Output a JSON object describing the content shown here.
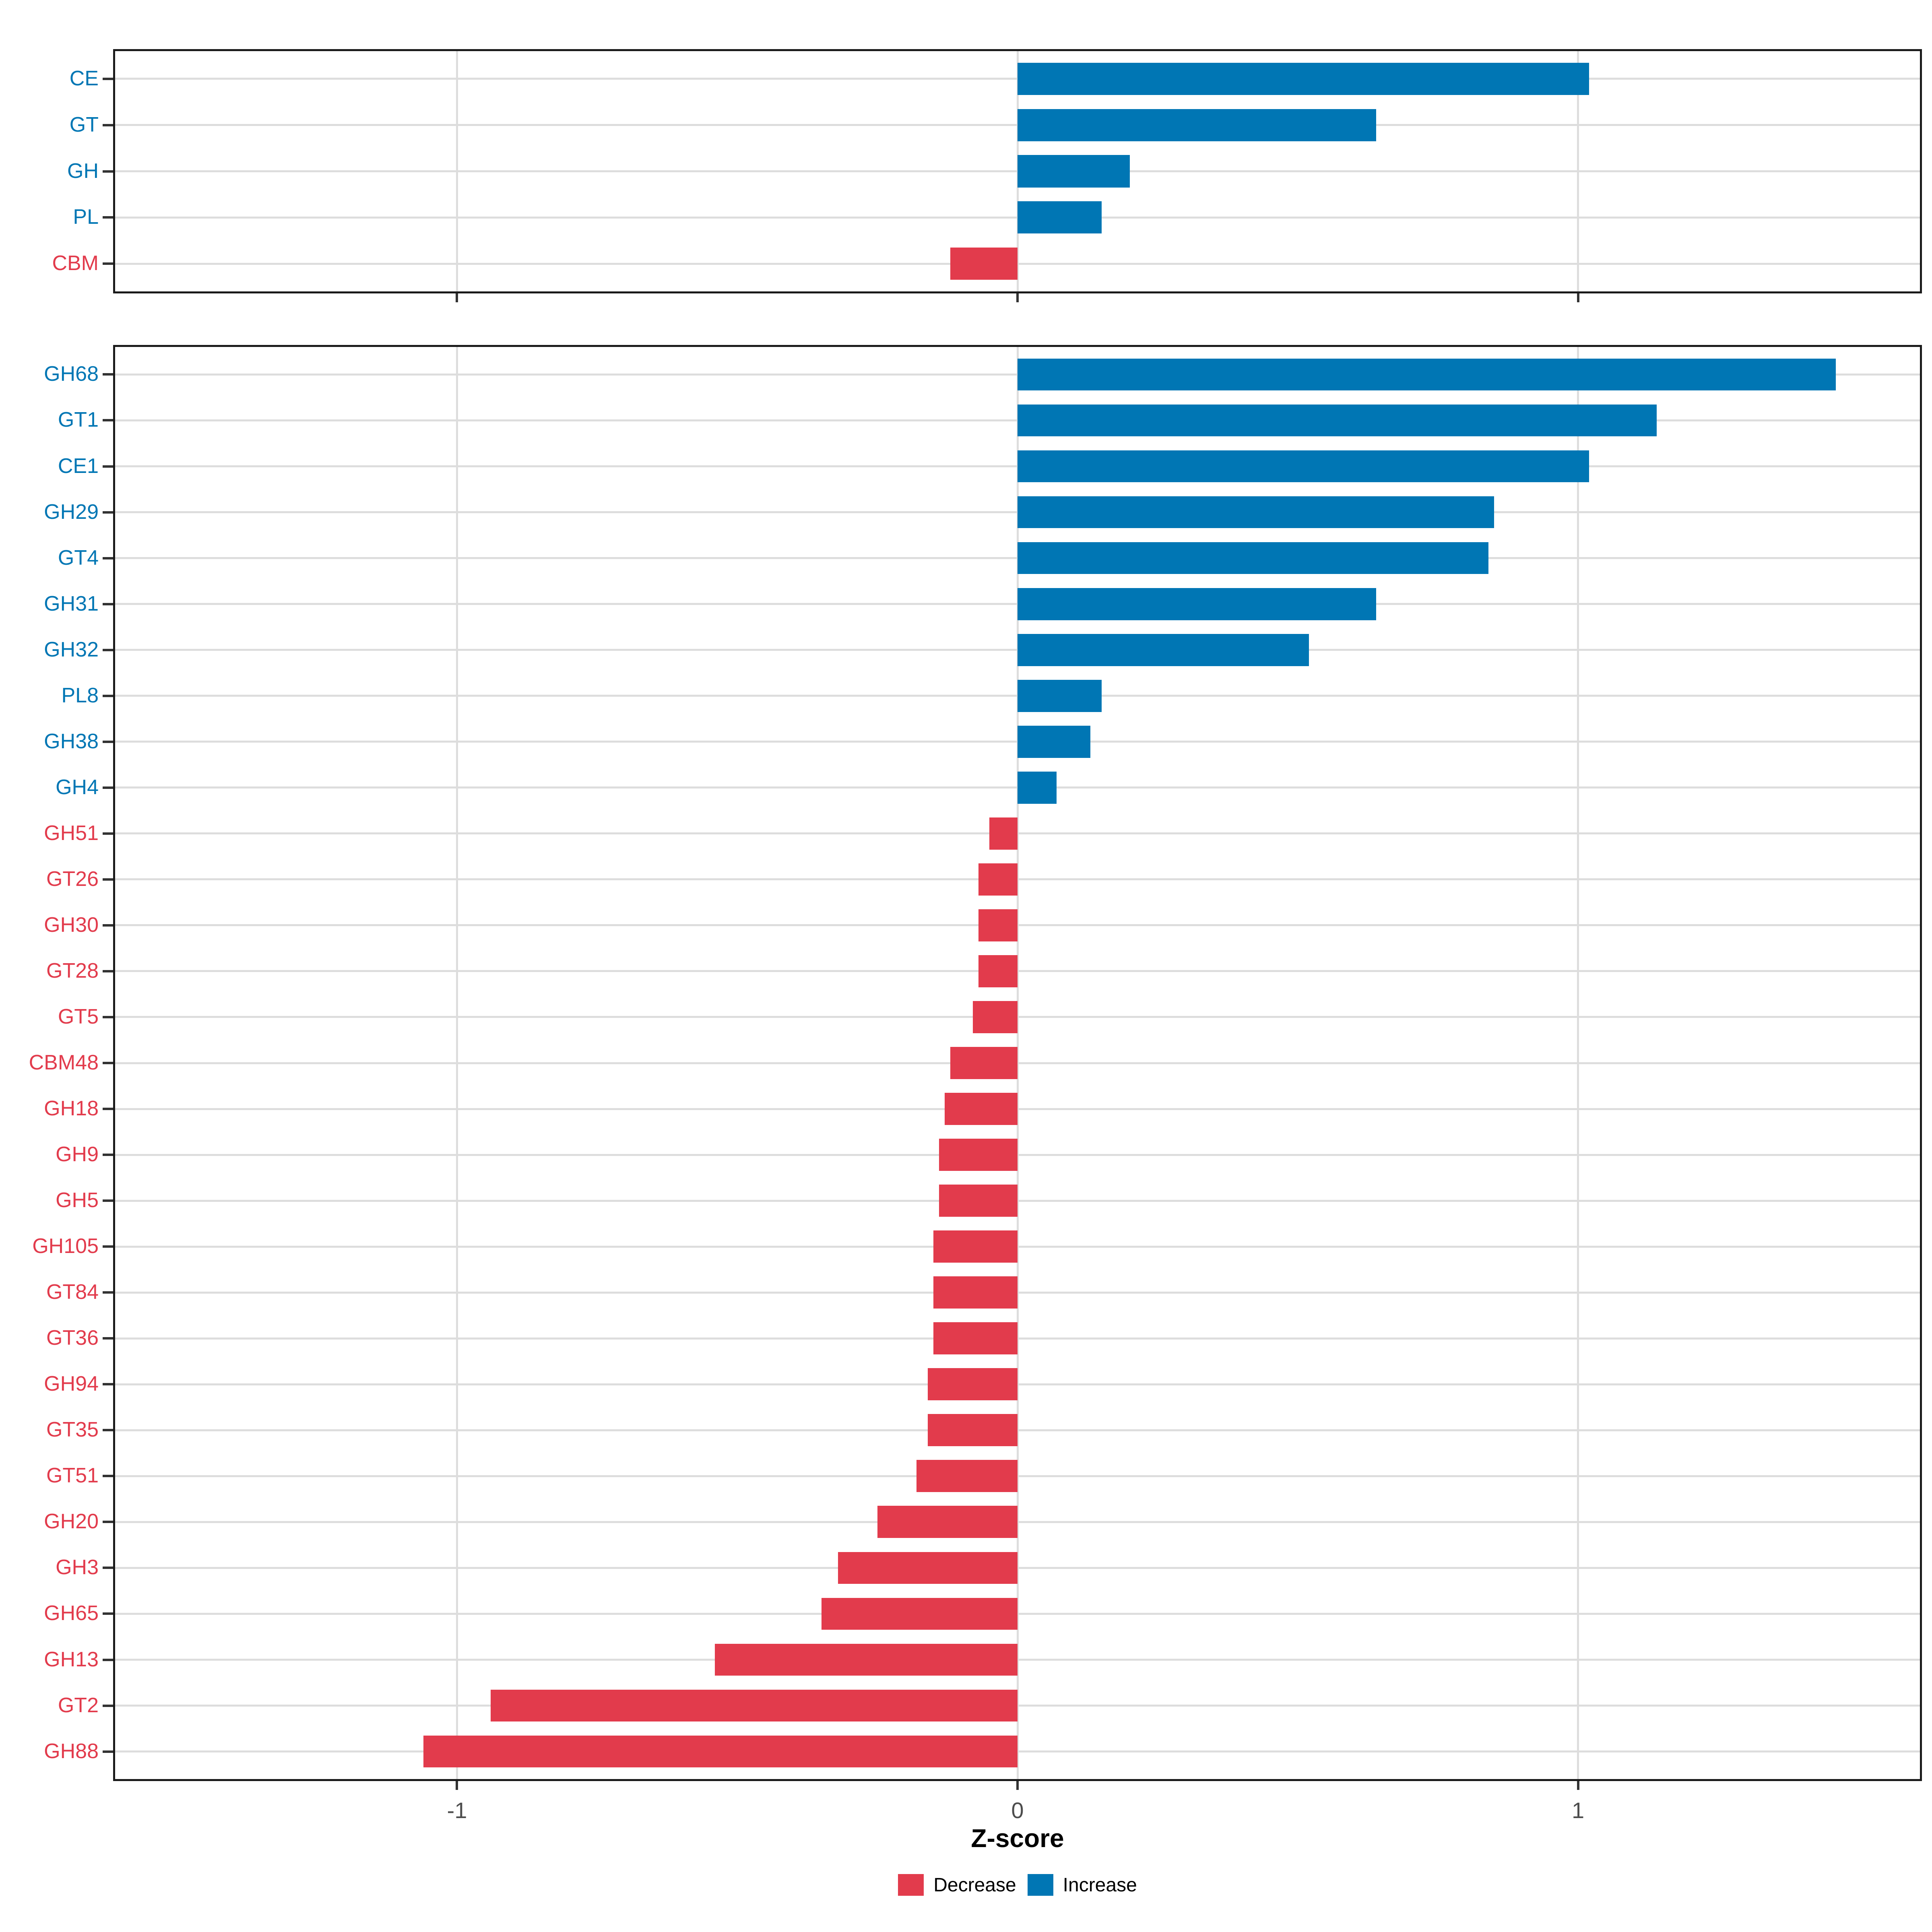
{
  "chart_data": [
    {
      "type": "bar",
      "panel": "cazyme-classes-summary",
      "orientation": "horizontal",
      "categories": [
        "CE",
        "GT",
        "GH",
        "PL",
        "CBM"
      ],
      "values": [
        1.02,
        0.64,
        0.2,
        0.15,
        -0.12
      ],
      "xlim": [
        -1.61,
        1.61
      ],
      "x_ticks": [
        -1,
        0,
        1
      ],
      "x_tick_labels": [
        "-1",
        "0",
        "1"
      ],
      "show_x_tick_labels": false,
      "grid": true,
      "bar_width_ratio": 0.7
    },
    {
      "type": "bar",
      "panel": "cazyme-families-detail",
      "orientation": "horizontal",
      "categories": [
        "GH68",
        "GT1",
        "CE1",
        "GH29",
        "GT4",
        "GH31",
        "GH32",
        "PL8",
        "GH38",
        "GH4",
        "GH51",
        "GT26",
        "GH30",
        "GT28",
        "GT5",
        "CBM48",
        "GH18",
        "GH9",
        "GH5",
        "GH105",
        "GT84",
        "GT36",
        "GH94",
        "GT35",
        "GT51",
        "GH20",
        "GH3",
        "GH65",
        "GH13",
        "GT2",
        "GH88"
      ],
      "values": [
        1.46,
        1.14,
        1.02,
        0.85,
        0.84,
        0.64,
        0.52,
        0.15,
        0.13,
        0.07,
        -0.05,
        -0.07,
        -0.07,
        -0.07,
        -0.08,
        -0.12,
        -0.13,
        -0.14,
        -0.14,
        -0.15,
        -0.15,
        -0.15,
        -0.16,
        -0.16,
        -0.18,
        -0.25,
        -0.32,
        -0.35,
        -0.54,
        -0.94,
        -1.06
      ],
      "xlim": [
        -1.61,
        1.61
      ],
      "x_ticks": [
        -1,
        0,
        1
      ],
      "x_tick_labels": [
        "-1",
        "0",
        "1"
      ],
      "show_x_tick_labels": true,
      "grid": true,
      "bar_width_ratio": 0.7
    }
  ],
  "xlabel": "Z-score",
  "legend": {
    "items": [
      {
        "key": "decrease",
        "label": "Decrease",
        "color": "#E23B4C"
      },
      {
        "key": "increase",
        "label": "Increase",
        "color": "#0076B4"
      }
    ]
  },
  "colors": {
    "increase": "#0076B4",
    "decrease": "#E23B4C",
    "grid": "#DDDDDD",
    "panel_border": "#1A1A1A",
    "axis_tick": "#333333",
    "tick_label": "#4D4D4D"
  }
}
